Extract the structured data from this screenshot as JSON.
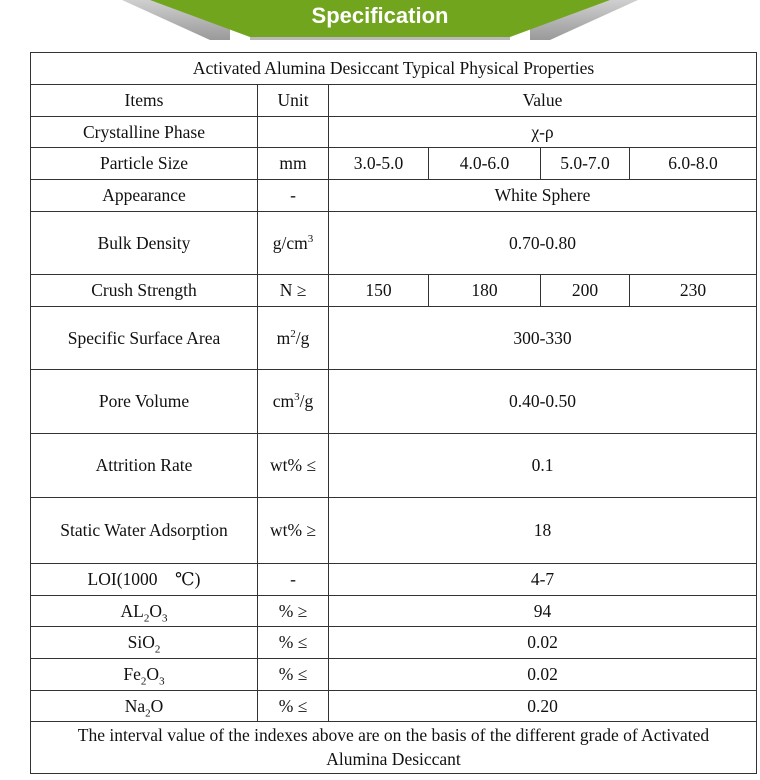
{
  "banner": {
    "title": "Specification",
    "color": "#72a51e"
  },
  "table": {
    "caption": "Activated Alumina Desiccant Typical Physical Properties",
    "headers": {
      "items": "Items",
      "unit": "Unit",
      "value": "Value"
    },
    "rows": [
      {
        "item": [
          {
            "t": "Crystalline Phase"
          }
        ],
        "unit": [
          {
            "t": ""
          }
        ],
        "values": [
          "χ-ρ"
        ],
        "h": 31
      },
      {
        "item": [
          {
            "t": "Particle Size"
          }
        ],
        "unit": [
          {
            "t": "mm"
          }
        ],
        "values": [
          "3.0-5.0",
          "4.0-6.0",
          "5.0-7.0",
          "6.0-8.0"
        ],
        "h": 32
      },
      {
        "item": [
          {
            "t": "Appearance"
          }
        ],
        "unit": [
          {
            "t": "-"
          }
        ],
        "values": [
          "White Sphere"
        ],
        "h": 32
      },
      {
        "item": [
          {
            "t": "Bulk Density"
          }
        ],
        "unit": [
          {
            "t": "g/cm"
          },
          {
            "t": "3",
            "sup": true
          }
        ],
        "values": [
          "0.70-0.80"
        ],
        "h": 63
      },
      {
        "item": [
          {
            "t": "Crush Strength"
          }
        ],
        "unit": [
          {
            "t": "N ≥"
          }
        ],
        "values": [
          "150",
          "180",
          "200",
          "230"
        ],
        "h": 32
      },
      {
        "item": [
          {
            "t": "Specific Surface Area"
          }
        ],
        "unit": [
          {
            "t": "m"
          },
          {
            "t": "2",
            "sup": true
          },
          {
            "t": "/g"
          }
        ],
        "values": [
          "300-330"
        ],
        "h": 63
      },
      {
        "item": [
          {
            "t": "Pore Volume"
          }
        ],
        "unit": [
          {
            "t": "cm"
          },
          {
            "t": "3",
            "sup": true
          },
          {
            "t": "/g"
          }
        ],
        "values": [
          "0.40-0.50"
        ],
        "h": 64
      },
      {
        "item": [
          {
            "t": "Attrition Rate"
          }
        ],
        "unit": [
          {
            "t": "wt% ≤"
          }
        ],
        "values": [
          "0.1"
        ],
        "h": 64
      },
      {
        "item": [
          {
            "t": "Static Water Adsorption"
          }
        ],
        "unit": [
          {
            "t": "wt% ≥"
          }
        ],
        "values": [
          "18"
        ],
        "h": 66
      },
      {
        "item": [
          {
            "t": "LOI(1000    ℃)"
          }
        ],
        "unit": [
          {
            "t": "-"
          }
        ],
        "values": [
          "4-7"
        ],
        "h": 32
      },
      {
        "item": [
          {
            "t": "AL"
          },
          {
            "t": "2",
            "sub": true
          },
          {
            "t": "O"
          },
          {
            "t": "3",
            "sub": true
          }
        ],
        "unit": [
          {
            "t": "% ≥"
          }
        ],
        "values": [
          "94"
        ],
        "h": 31
      },
      {
        "item": [
          {
            "t": "SiO"
          },
          {
            "t": "2",
            "sub": true
          }
        ],
        "unit": [
          {
            "t": "% ≤"
          }
        ],
        "values": [
          "0.02"
        ],
        "h": 32
      },
      {
        "item": [
          {
            "t": "Fe"
          },
          {
            "t": "2",
            "sub": true
          },
          {
            "t": "O"
          },
          {
            "t": "3",
            "sub": true
          }
        ],
        "unit": [
          {
            "t": "% ≤"
          }
        ],
        "values": [
          "0.02"
        ],
        "h": 32
      },
      {
        "item": [
          {
            "t": "Na"
          },
          {
            "t": "2",
            "sub": true
          },
          {
            "t": "O"
          }
        ],
        "unit": [
          {
            "t": "% ≤"
          }
        ],
        "values": [
          "0.20"
        ],
        "h": 31
      }
    ],
    "footnote": "The interval value of the indexes above are on the basis of the different grade of Activated Alumina Desiccant"
  }
}
